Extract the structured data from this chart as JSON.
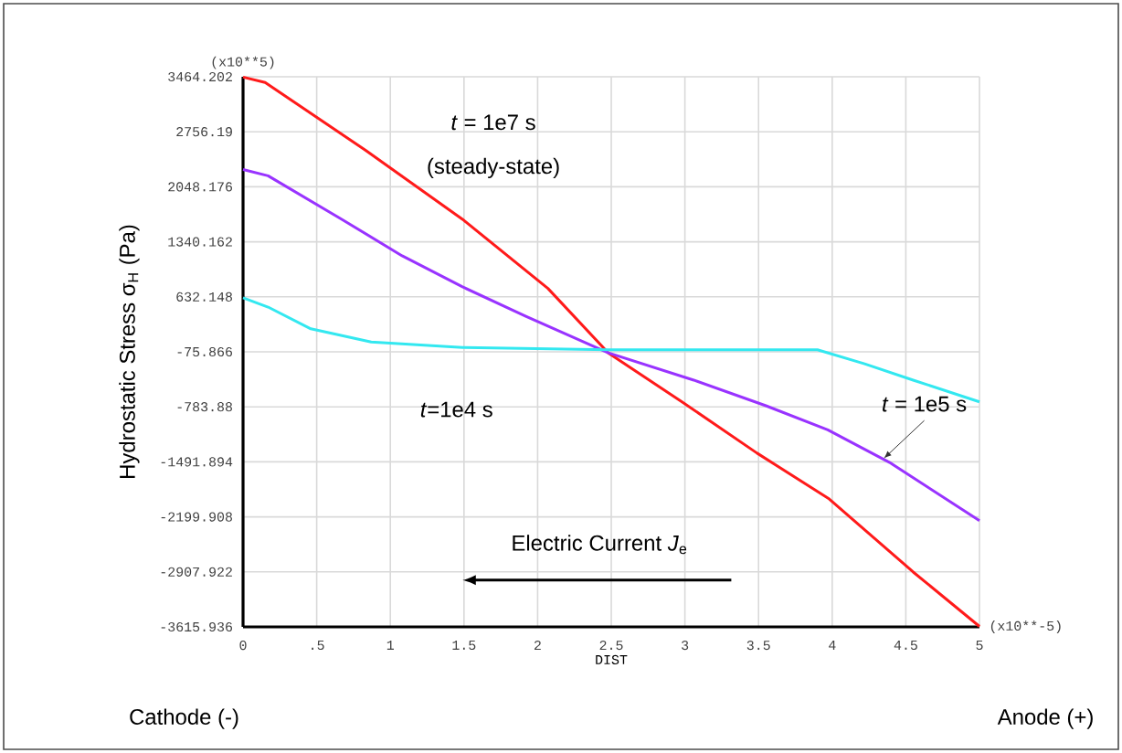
{
  "chart_data": {
    "type": "line",
    "xlabel": "DIST",
    "ylabel": "Hydrostatic Stress σ$_{H}$ (Pa)",
    "xlim": [
      0,
      5
    ],
    "ylim": [
      -3615.936,
      3464.202
    ],
    "xticks": [
      0,
      {
        "value": 0.5,
        "label": ".5"
      },
      1,
      1.5,
      2,
      2.5,
      3,
      3.5,
      4,
      4.5,
      5
    ],
    "yticks": [
      -3615.936,
      -2907.922,
      -2199.908,
      -1491.894,
      -783.88,
      -75.866,
      632.148,
      1340.162,
      2048.176,
      2756.19,
      3464.202
    ],
    "grid": true,
    "series": [
      {
        "color": "#ff1a1a",
        "x": [
          0,
          0.15,
          0.83,
          1.49,
          2.07,
          2.48,
          2.98,
          3.49,
          3.98,
          4.55,
          5
        ],
        "values": [
          3460,
          3390,
          2520,
          1630,
          740,
          -90,
          -720,
          -1380,
          -1970,
          -2910,
          -3610
        ]
      },
      {
        "color": "#9933ff",
        "x": [
          0,
          0.17,
          0.67,
          1.08,
          1.49,
          1.92,
          2.48,
          3.06,
          3.55,
          3.97,
          4.39,
          5
        ],
        "values": [
          2270,
          2190,
          1630,
          1160,
          760,
          380,
          -90,
          -440,
          -770,
          -1080,
          -1500,
          -2250
        ]
      },
      {
        "color": "#33e8f0",
        "x": [
          0,
          0.17,
          0.46,
          0.87,
          1.49,
          2.48,
          3.9,
          4.22,
          4.55,
          5
        ],
        "values": [
          620,
          500,
          220,
          50,
          -20,
          -50,
          -50,
          -230,
          -440,
          -720
        ]
      }
    ],
    "annotations": [
      "(x10**5)",
      "(x10**-5)",
      "*t* = 1e7 s",
      "(steady-state)",
      "*t*=1e4 s",
      {
        "text": "*t* = 1e5 s",
        "x": 4.35,
        "y": -1450
      },
      "Electric Current *J*$_{e}$",
      "Cathode (-)",
      "Anode (+)"
    ]
  }
}
